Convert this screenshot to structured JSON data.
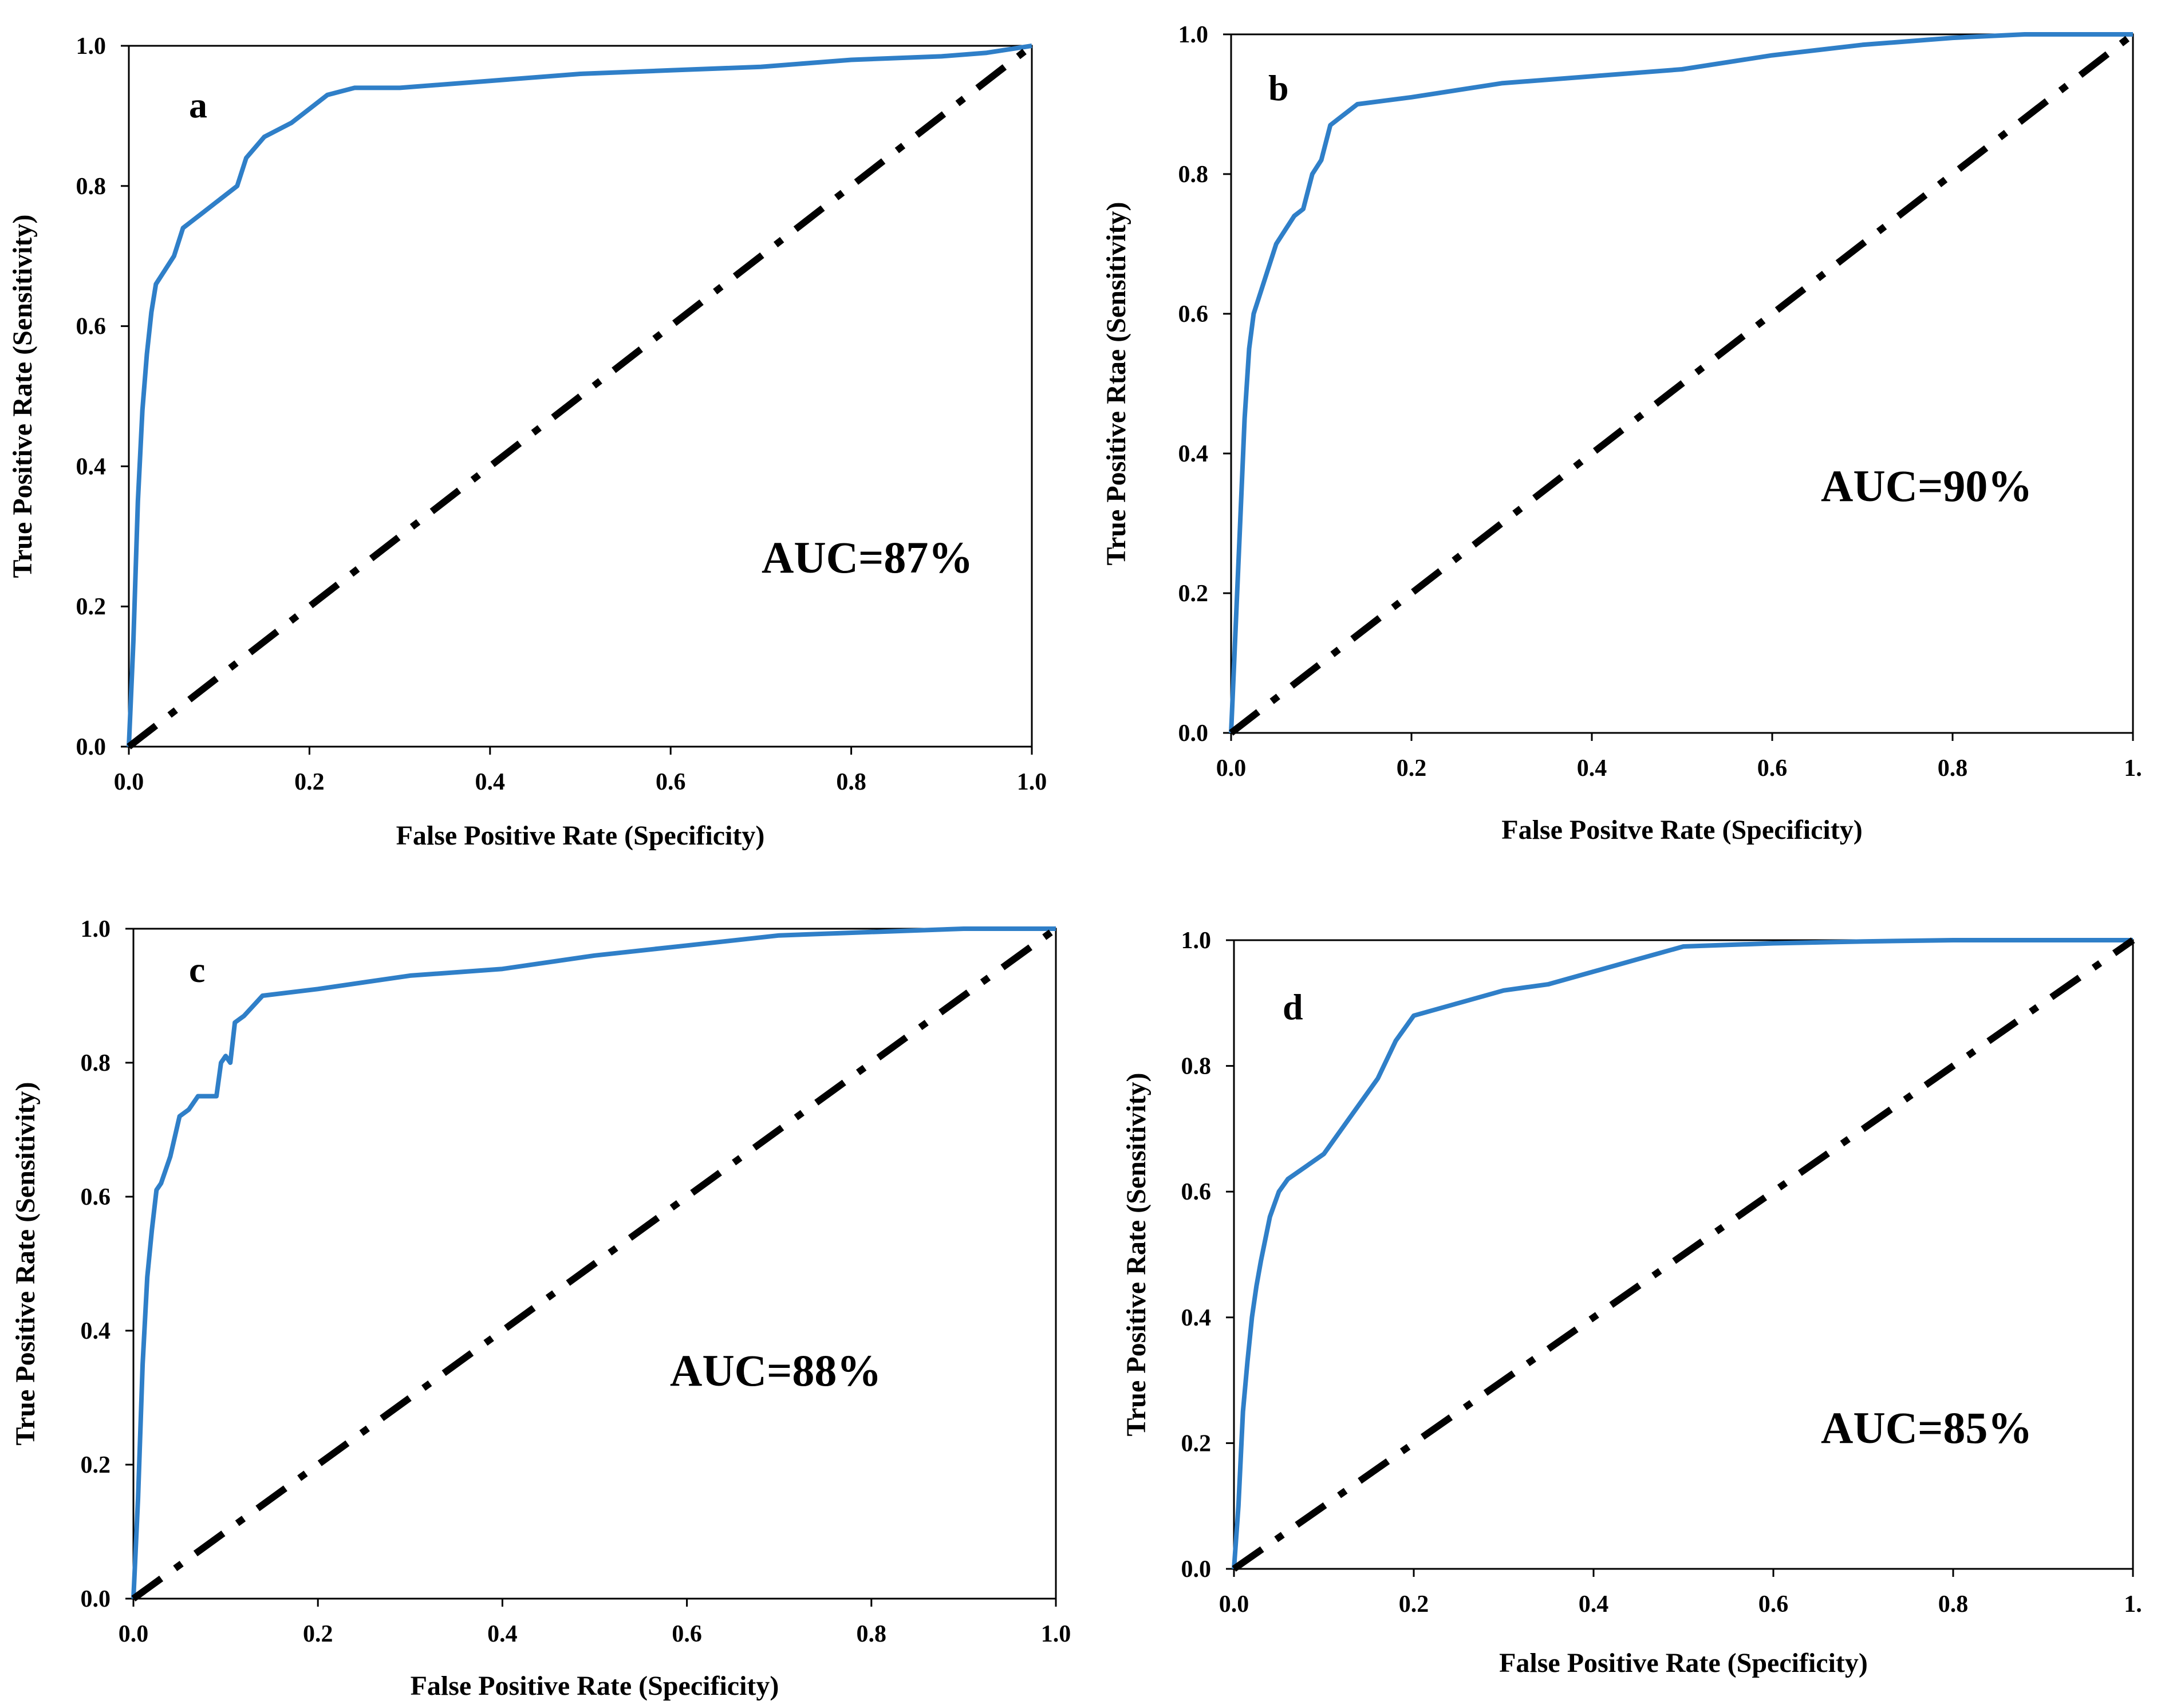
{
  "figure": {
    "description_free": true
  },
  "chart_data": [
    {
      "type": "line",
      "panel_label": "a",
      "annotation": "AUC=87%",
      "xlabel": "False Positive Rate (Specificity)",
      "ylabel": "True Positive Rate (Sensitivity)",
      "xlim": [
        0,
        1
      ],
      "ylim": [
        0,
        1
      ],
      "xticks": [
        "0.0",
        "0.2",
        "0.4",
        "0.6",
        "0.8",
        "1.0"
      ],
      "yticks": [
        "0.0",
        "0.2",
        "0.4",
        "0.6",
        "0.8",
        "1.0"
      ],
      "grid": false,
      "series": [
        {
          "name": "ROC",
          "color": "#2f7fc8",
          "x": [
            0,
            0.005,
            0.01,
            0.015,
            0.02,
            0.025,
            0.03,
            0.04,
            0.05,
            0.06,
            0.07,
            0.08,
            0.1,
            0.12,
            0.13,
            0.15,
            0.18,
            0.2,
            0.22,
            0.25,
            0.3,
            0.4,
            0.5,
            0.6,
            0.7,
            0.8,
            0.9,
            0.95,
            1.0
          ],
          "y": [
            0,
            0.15,
            0.35,
            0.48,
            0.56,
            0.62,
            0.66,
            0.68,
            0.7,
            0.74,
            0.75,
            0.76,
            0.78,
            0.8,
            0.84,
            0.87,
            0.89,
            0.91,
            0.93,
            0.94,
            0.94,
            0.95,
            0.96,
            0.965,
            0.97,
            0.98,
            0.985,
            0.99,
            1.0
          ]
        },
        {
          "name": "Random",
          "style": "dash-dot",
          "color": "#000000",
          "x": [
            0,
            1
          ],
          "y": [
            0,
            1
          ]
        }
      ]
    },
    {
      "type": "line",
      "panel_label": "b",
      "annotation": "AUC=90%",
      "xlabel": "False Positve Rate (Specificity)",
      "ylabel": "True Positive Rtae (Sensitivity)",
      "xlim": [
        0,
        1
      ],
      "ylim": [
        0,
        1
      ],
      "xticks": [
        "0.0",
        "0.2",
        "0.4",
        "0.6",
        "0.8",
        "1."
      ],
      "yticks": [
        "0.0",
        "0.2",
        "0.4",
        "0.6",
        "0.8",
        "1.0"
      ],
      "grid": false,
      "series": [
        {
          "name": "ROC",
          "color": "#2f7fc8",
          "x": [
            0,
            0.005,
            0.01,
            0.015,
            0.02,
            0.025,
            0.03,
            0.04,
            0.05,
            0.06,
            0.07,
            0.08,
            0.09,
            0.1,
            0.11,
            0.12,
            0.13,
            0.14,
            0.2,
            0.3,
            0.4,
            0.5,
            0.6,
            0.7,
            0.8,
            0.88,
            1.0
          ],
          "y": [
            0,
            0.15,
            0.3,
            0.45,
            0.55,
            0.6,
            0.62,
            0.66,
            0.7,
            0.72,
            0.74,
            0.75,
            0.8,
            0.82,
            0.87,
            0.88,
            0.89,
            0.9,
            0.91,
            0.93,
            0.94,
            0.95,
            0.97,
            0.985,
            0.995,
            1.0,
            1.0
          ]
        },
        {
          "name": "Random",
          "style": "dash-dot",
          "color": "#000000",
          "x": [
            0,
            1
          ],
          "y": [
            0,
            1
          ]
        }
      ]
    },
    {
      "type": "line",
      "panel_label": "c",
      "annotation": "AUC=88%",
      "xlabel": "False Positive Rate (Specificity)",
      "ylabel": "True Positive Rate (Sensitivity)",
      "xlim": [
        0,
        1
      ],
      "ylim": [
        0,
        1
      ],
      "xticks": [
        "0.0",
        "0.2",
        "0.4",
        "0.6",
        "0.8",
        "1.0"
      ],
      "yticks": [
        "0.0",
        "0.2",
        "0.4",
        "0.6",
        "0.8",
        "1.0"
      ],
      "grid": false,
      "series": [
        {
          "name": "ROC",
          "color": "#2f7fc8",
          "x": [
            0,
            0.005,
            0.01,
            0.015,
            0.02,
            0.025,
            0.03,
            0.04,
            0.05,
            0.06,
            0.07,
            0.08,
            0.09,
            0.095,
            0.1,
            0.105,
            0.11,
            0.12,
            0.14,
            0.2,
            0.3,
            0.4,
            0.5,
            0.6,
            0.7,
            0.8,
            0.9,
            1.0
          ],
          "y": [
            0,
            0.15,
            0.35,
            0.48,
            0.55,
            0.61,
            0.62,
            0.66,
            0.72,
            0.73,
            0.75,
            0.75,
            0.75,
            0.8,
            0.81,
            0.8,
            0.86,
            0.87,
            0.9,
            0.91,
            0.93,
            0.94,
            0.96,
            0.975,
            0.99,
            0.995,
            1.0,
            1.0
          ]
        },
        {
          "name": "Random",
          "style": "dash-dot",
          "color": "#000000",
          "x": [
            0,
            1
          ],
          "y": [
            0,
            1
          ]
        }
      ]
    },
    {
      "type": "line",
      "panel_label": "d",
      "annotation": "AUC=85%",
      "xlabel": "False Positive Rate (Specificity)",
      "ylabel": "True Positive Rate (Sensitivity)",
      "xlim": [
        0,
        1
      ],
      "ylim": [
        0,
        1
      ],
      "xticks": [
        "0.0",
        "0.2",
        "0.4",
        "0.6",
        "0.8",
        "1."
      ],
      "yticks": [
        "0.0",
        "0.2",
        "0.4",
        "0.6",
        "0.8",
        "1.0"
      ],
      "grid": false,
      "series": [
        {
          "name": "ROC",
          "color": "#2f7fc8",
          "x": [
            0,
            0.005,
            0.01,
            0.015,
            0.02,
            0.025,
            0.03,
            0.04,
            0.05,
            0.06,
            0.08,
            0.1,
            0.12,
            0.14,
            0.16,
            0.18,
            0.2,
            0.25,
            0.3,
            0.35,
            0.4,
            0.45,
            0.5,
            0.6,
            0.7,
            0.8,
            0.9,
            1.0
          ],
          "y": [
            0,
            0.1,
            0.25,
            0.33,
            0.4,
            0.45,
            0.49,
            0.56,
            0.6,
            0.62,
            0.64,
            0.66,
            0.7,
            0.74,
            0.78,
            0.84,
            0.88,
            0.9,
            0.92,
            0.93,
            0.95,
            0.97,
            0.99,
            0.995,
            0.998,
            1.0,
            1.0,
            1.0
          ]
        },
        {
          "name": "Random",
          "style": "dash-dot",
          "color": "#000000",
          "x": [
            0,
            1
          ],
          "y": [
            0,
            1
          ]
        }
      ]
    }
  ]
}
